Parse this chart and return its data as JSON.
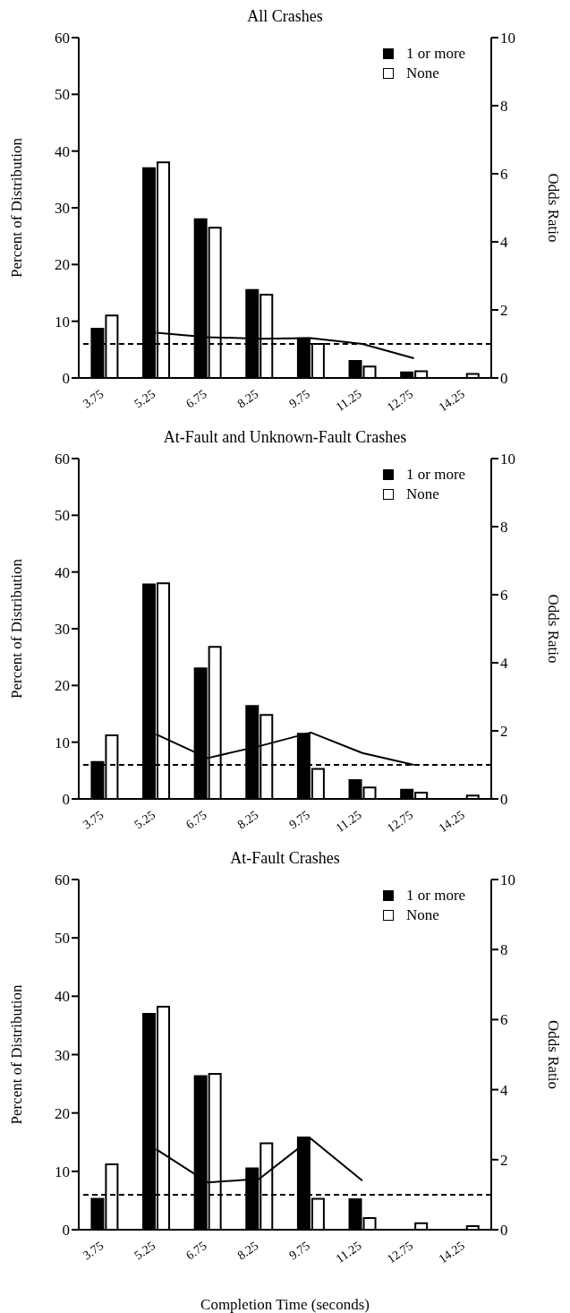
{
  "chart_data": [
    {
      "type": "bar",
      "title": "All Crashes",
      "ylabel": "Percent of Distribution",
      "y2label": "Odds Ratio",
      "categories": [
        "3.75",
        "5.25",
        "6.75",
        "8.25",
        "9.75",
        "11.25",
        "12.75",
        "14.25"
      ],
      "series": [
        {
          "name": "1 or more",
          "color": "#000000",
          "values": [
            8.7,
            37,
            28,
            15.5,
            7,
            3,
            1,
            0
          ]
        },
        {
          "name": "None",
          "color": "#ffffff",
          "values": [
            11,
            38,
            26.5,
            14.7,
            6,
            2,
            1.2,
            0.7
          ]
        },
        {
          "type": "line",
          "axis": "y2",
          "color": "#000000",
          "values": [
            null,
            1.33,
            1.2,
            1.15,
            1.17,
            1.0,
            0.58,
            null
          ]
        }
      ],
      "ylim": [
        0,
        60
      ],
      "yticks": [
        0,
        10,
        20,
        30,
        40,
        50,
        60
      ],
      "y2lim": [
        0,
        10
      ],
      "y2ticks": [
        0,
        2,
        4,
        6,
        8,
        10
      ],
      "ref_lines": [
        {
          "axis": "y2",
          "value": 1,
          "line_style": "dashed",
          "color": "#000000"
        }
      ],
      "legend": "top right",
      "grid": false
    },
    {
      "type": "bar",
      "title": "At-Fault and Unknown-Fault Crashes",
      "ylabel": "Percent of Distribution",
      "y2label": "Odds Ratio",
      "categories": [
        "3.75",
        "5.25",
        "6.75",
        "8.25",
        "9.75",
        "11.25",
        "12.75",
        "14.25"
      ],
      "series": [
        {
          "name": "1 or more",
          "color": "#000000",
          "values": [
            6.5,
            37.8,
            23,
            16.4,
            11.5,
            3.3,
            1.6,
            0
          ]
        },
        {
          "name": "None",
          "color": "#ffffff",
          "values": [
            11.2,
            38,
            26.8,
            14.8,
            5.3,
            2,
            1.1,
            0.6
          ]
        },
        {
          "type": "line",
          "axis": "y2",
          "color": "#000000",
          "values": [
            null,
            1.9,
            1.2,
            1.55,
            1.95,
            1.35,
            1.0,
            null
          ]
        }
      ],
      "ylim": [
        0,
        60
      ],
      "yticks": [
        0,
        10,
        20,
        30,
        40,
        50,
        60
      ],
      "y2lim": [
        0,
        10
      ],
      "y2ticks": [
        0,
        2,
        4,
        6,
        8,
        10
      ],
      "ref_lines": [
        {
          "axis": "y2",
          "value": 1,
          "line_style": "dashed",
          "color": "#000000"
        }
      ],
      "legend": "top right",
      "grid": false
    },
    {
      "type": "bar",
      "title": "At-Fault Crashes",
      "xlabel": "Completion Time (seconds)",
      "ylabel": "Percent of Distribution",
      "y2label": "Odds Ratio",
      "categories": [
        "3.75",
        "5.25",
        "6.75",
        "8.25",
        "9.75",
        "11.25",
        "12.75",
        "14.25"
      ],
      "series": [
        {
          "name": "1 or more",
          "color": "#000000",
          "values": [
            5.3,
            37,
            26.3,
            10.5,
            15.8,
            5.2,
            0,
            0
          ]
        },
        {
          "name": "None",
          "color": "#ffffff",
          "values": [
            11.2,
            38.2,
            26.7,
            14.8,
            5.3,
            2,
            1.1,
            0.6
          ]
        },
        {
          "type": "line",
          "axis": "y2",
          "color": "#000000",
          "values": [
            null,
            2.3,
            1.35,
            1.45,
            2.6,
            1.4,
            null,
            null
          ]
        }
      ],
      "ylim": [
        0,
        60
      ],
      "yticks": [
        0,
        10,
        20,
        30,
        40,
        50,
        60
      ],
      "y2lim": [
        0,
        10
      ],
      "y2ticks": [
        0,
        2,
        4,
        6,
        8,
        10
      ],
      "ref_lines": [
        {
          "axis": "y2",
          "value": 1,
          "line_style": "dashed",
          "color": "#000000"
        }
      ],
      "legend": "top right",
      "grid": false
    }
  ]
}
